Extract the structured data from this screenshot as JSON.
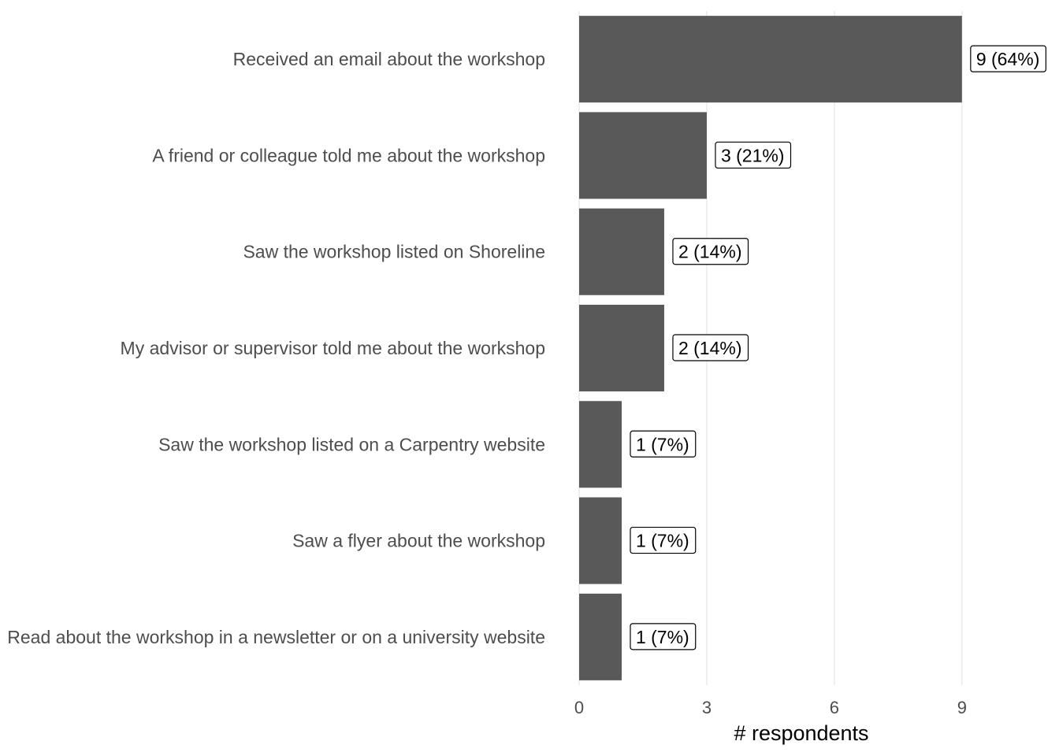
{
  "chart_data": {
    "type": "bar",
    "orientation": "horizontal",
    "categories": [
      "Received an email about the workshop",
      "A friend or colleague told me about the workshop",
      "Saw the workshop listed on Shoreline",
      "My advisor or supervisor told me about the workshop",
      "Saw the workshop listed on a Carpentry website",
      "Saw a flyer about the workshop",
      "Read about the workshop in a newsletter or on a university website"
    ],
    "values": [
      9,
      3,
      2,
      2,
      1,
      1,
      1
    ],
    "data_labels": [
      "9 (64%)",
      "3 (21%)",
      "2 (14%)",
      "2 (14%)",
      "1 (7%)",
      "1 (7%)",
      "1 (7%)"
    ],
    "xlabel": "# respondents",
    "ylabel": "",
    "xlim": [
      0,
      10.8
    ],
    "x_ticks": [
      "0",
      "3",
      "6",
      "9"
    ],
    "grid": "vertical",
    "bar_color": "#595959"
  }
}
